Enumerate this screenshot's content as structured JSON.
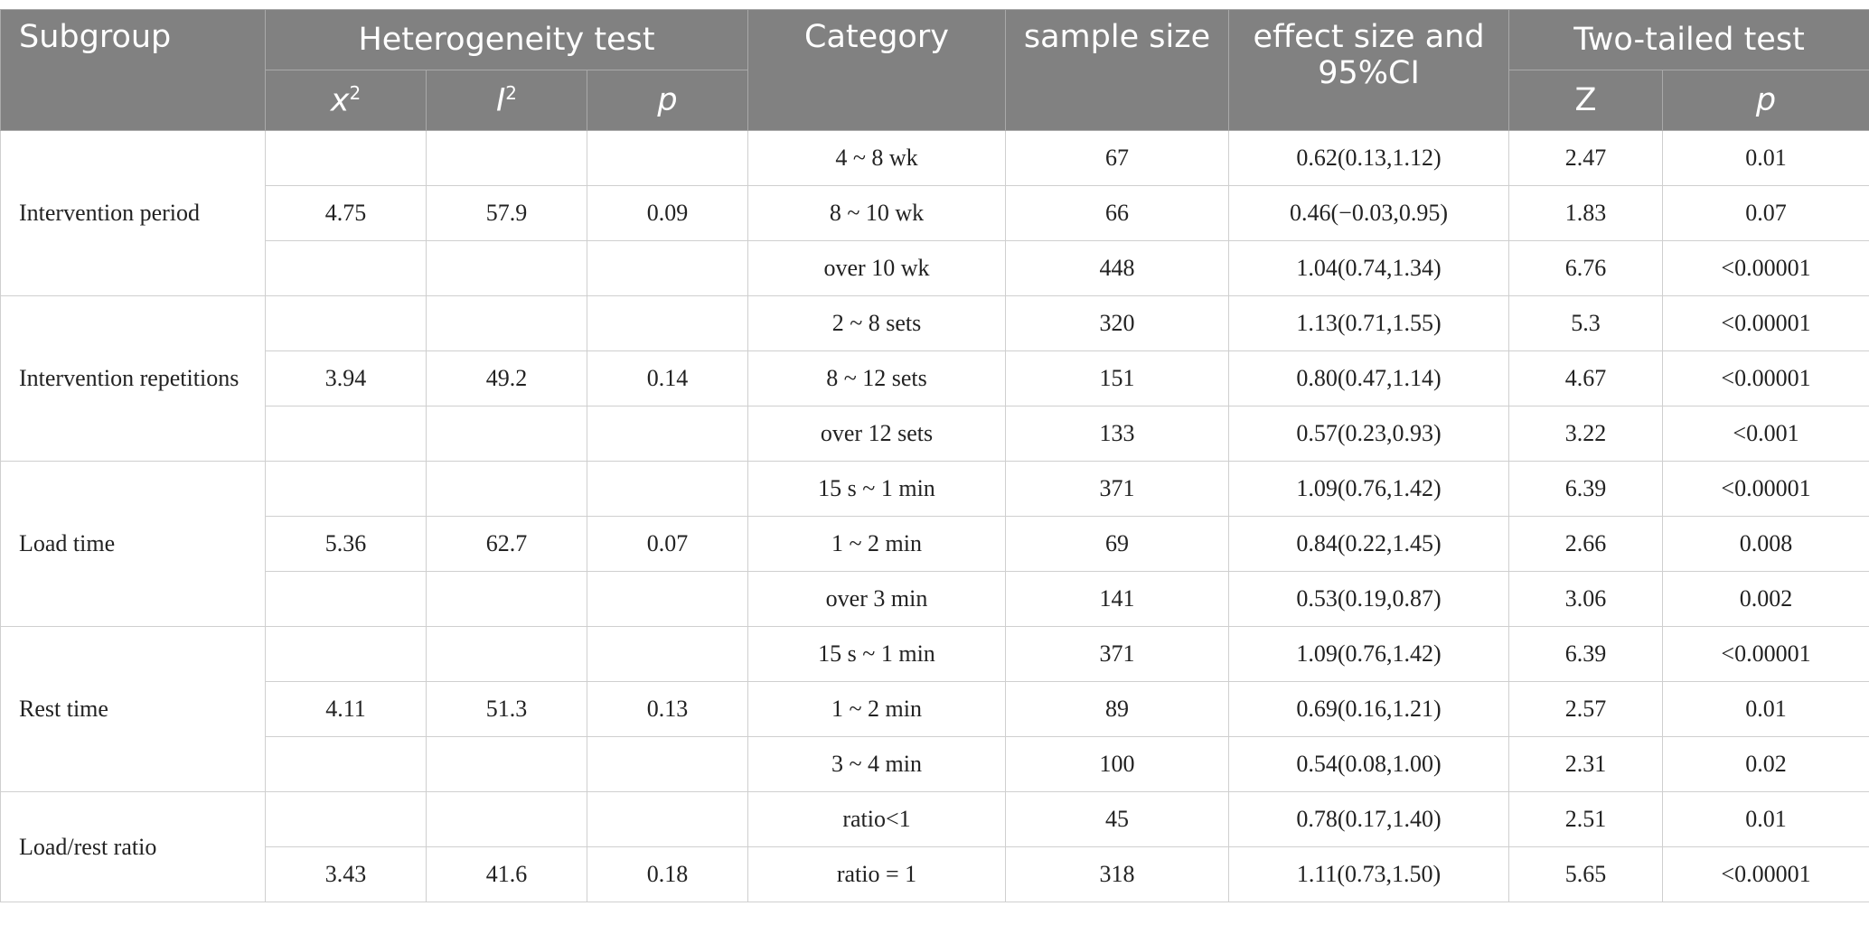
{
  "table": {
    "header": {
      "subgroup": "Subgroup",
      "heterogeneity": "Heterogeneity test",
      "x2": {
        "base": "x",
        "sup": "2"
      },
      "i2": {
        "base": "I",
        "sup": "2"
      },
      "p": "p",
      "category": "Category",
      "sample_size": "sample size",
      "effect": "effect size and 95%CI",
      "two_tailed": "Two-tailed test",
      "z": "Z",
      "p2": "p"
    },
    "groups": [
      {
        "subgroup": "Intervention period",
        "x2": "4.75",
        "i2": "57.9",
        "p": "0.09",
        "rows": [
          {
            "category": "4 ~ 8 wk",
            "n": "67",
            "effect": "0.62(0.13,1.12)",
            "z": "2.47",
            "p": "0.01"
          },
          {
            "category": "8 ~ 10 wk",
            "n": "66",
            "effect": "0.46(−0.03,0.95)",
            "z": "1.83",
            "p": "0.07"
          },
          {
            "category": "over 10 wk",
            "n": "448",
            "effect": "1.04(0.74,1.34)",
            "z": "6.76",
            "p": "<0.00001"
          }
        ]
      },
      {
        "subgroup": "Intervention repetitions",
        "x2": "3.94",
        "i2": "49.2",
        "p": "0.14",
        "rows": [
          {
            "category": "2 ~ 8 sets",
            "n": "320",
            "effect": "1.13(0.71,1.55)",
            "z": "5.3",
            "p": "<0.00001"
          },
          {
            "category": "8 ~ 12 sets",
            "n": "151",
            "effect": "0.80(0.47,1.14)",
            "z": "4.67",
            "p": "<0.00001"
          },
          {
            "category": "over 12 sets",
            "n": "133",
            "effect": "0.57(0.23,0.93)",
            "z": "3.22",
            "p": "<0.001"
          }
        ]
      },
      {
        "subgroup": "Load time",
        "x2": "5.36",
        "i2": "62.7",
        "p": "0.07",
        "rows": [
          {
            "category": "15 s ~ 1 min",
            "n": "371",
            "effect": "1.09(0.76,1.42)",
            "z": "6.39",
            "p": "<0.00001"
          },
          {
            "category": "1 ~ 2 min",
            "n": "69",
            "effect": "0.84(0.22,1.45)",
            "z": "2.66",
            "p": "0.008"
          },
          {
            "category": "over 3 min",
            "n": "141",
            "effect": "0.53(0.19,0.87)",
            "z": "3.06",
            "p": "0.002"
          }
        ]
      },
      {
        "subgroup": "Rest time",
        "x2": "4.11",
        "i2": "51.3",
        "p": "0.13",
        "rows": [
          {
            "category": "15 s ~ 1 min",
            "n": "371",
            "effect": "1.09(0.76,1.42)",
            "z": "6.39",
            "p": "<0.00001"
          },
          {
            "category": "1 ~ 2 min",
            "n": "89",
            "effect": "0.69(0.16,1.21)",
            "z": "2.57",
            "p": "0.01"
          },
          {
            "category": "3 ~ 4 min",
            "n": "100",
            "effect": "0.54(0.08,1.00)",
            "z": "2.31",
            "p": "0.02"
          }
        ]
      },
      {
        "subgroup": "Load/rest ratio",
        "x2": "3.43",
        "i2": "41.6",
        "p": "0.18",
        "rows": [
          {
            "category": "ratio<1",
            "n": "45",
            "effect": "0.78(0.17,1.40)",
            "z": "2.51",
            "p": "0.01"
          },
          {
            "category": "ratio = 1",
            "n": "318",
            "effect": "1.11(0.73,1.50)",
            "z": "5.65",
            "p": "<0.00001"
          }
        ]
      }
    ]
  }
}
